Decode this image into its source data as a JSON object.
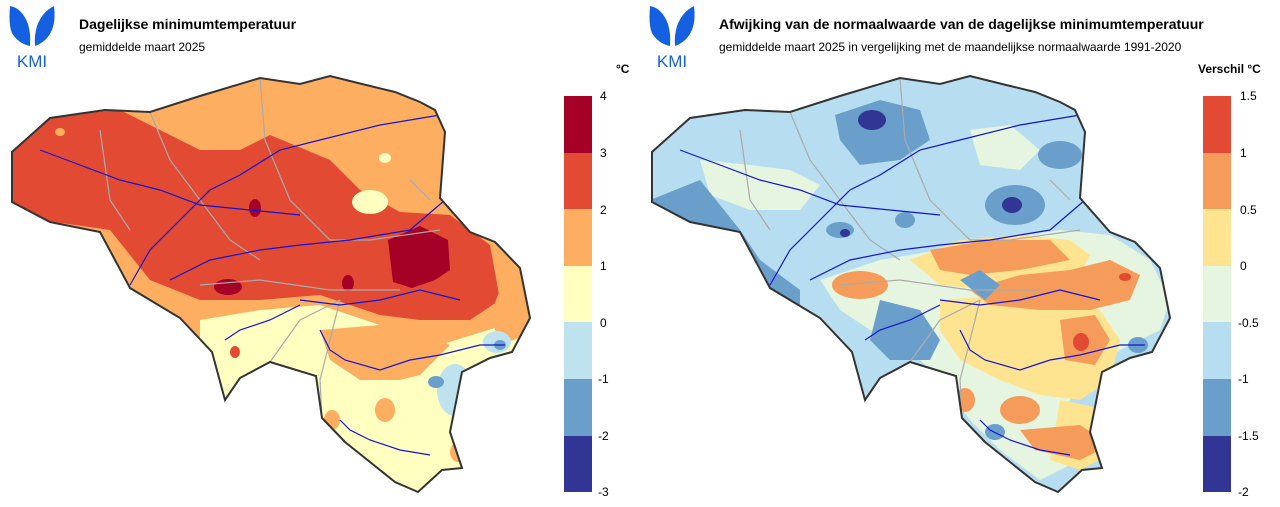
{
  "org": {
    "logo_text": "KMI",
    "brand_color": "#1560e0"
  },
  "left_panel": {
    "title": "Dagelijkse minimumtemperatuur",
    "subtitle": "gemiddelde maart 2025",
    "unit": "°C",
    "legend_ticks": [
      "4",
      "3",
      "2",
      "1",
      "0",
      "-1",
      "-2",
      "-3"
    ],
    "legend_colors": [
      "#a50026",
      "#e34a33",
      "#fdae61",
      "#ffffbf",
      "#bfe2ef",
      "#6a9fcc",
      "#313695"
    ],
    "legend_min": -3,
    "legend_max": 4
  },
  "right_panel": {
    "title": "Afwijking van de normaalwaarde van de dagelijkse minimumtemperatuur",
    "subtitle": "gemiddelde maart 2025 in vergelijking met de maandelijkse normaalwaarde 1991-2020",
    "unit": "Verschil °C",
    "legend_ticks": [
      "1.5",
      "1",
      "0.5",
      "0",
      "-0.5",
      "-1",
      "-1.5",
      "-2"
    ],
    "legend_colors": [
      "#e34a33",
      "#f59c5a",
      "#fee391",
      "#e6f5df",
      "#b7def0",
      "#6a9fcc",
      "#313695"
    ],
    "legend_min": -2,
    "legend_max": 1.5
  },
  "colors": {
    "border": "#333333",
    "rivers": "#1414d0",
    "provinces": "#aaaaaa"
  }
}
